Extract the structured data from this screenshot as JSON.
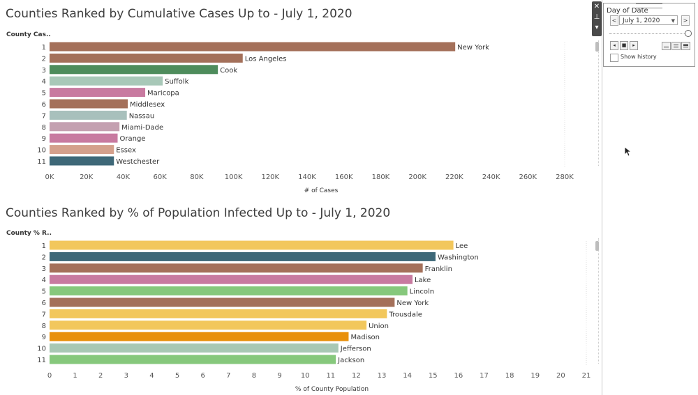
{
  "chart1": {
    "title": "Counties Ranked by Cumulative Cases Up to - July 1, 2020",
    "row_header": "County Cas..",
    "axis_label": "# of Cases"
  },
  "chart2": {
    "title": "Counties Ranked by % of Population Infected Up to - July 1, 2020",
    "row_header": "County % R..",
    "axis_label": "% of County Population"
  },
  "chart_data": [
    {
      "type": "bar",
      "orientation": "horizontal",
      "title": "Counties Ranked by Cumulative Cases Up to - July 1, 2020",
      "xlabel": "# of Cases",
      "ylabel": "County Cas..",
      "xlim": [
        0,
        280000
      ],
      "x_ticks": [
        "0K",
        "20K",
        "40K",
        "60K",
        "80K",
        "100K",
        "120K",
        "140K",
        "160K",
        "180K",
        "200K",
        "220K",
        "240K",
        "260K",
        "280K"
      ],
      "ranks": [
        "1",
        "2",
        "3",
        "4",
        "5",
        "6",
        "7",
        "8",
        "9",
        "10",
        "11"
      ],
      "categories": [
        "New York",
        "Los Angeles",
        "Cook",
        "Suffolk",
        "Maricopa",
        "Middlesex",
        "Nassau",
        "Miami-Dade",
        "Orange",
        "Essex",
        "Westchester"
      ],
      "values": [
        220500,
        105000,
        91500,
        61500,
        52000,
        42500,
        42000,
        38000,
        37000,
        35000,
        35000
      ],
      "colors": [
        "#a4705a",
        "#a4705a",
        "#4e8c5c",
        "#a8c8b8",
        "#c87aa0",
        "#a4705a",
        "#a8c0bc",
        "#c4a0b0",
        "#c87aa0",
        "#d4a08c",
        "#3e6878"
      ],
      "grid": false,
      "legend": "none"
    },
    {
      "type": "bar",
      "orientation": "horizontal",
      "title": "Counties Ranked by % of Population Infected Up to - July 1, 2020",
      "xlabel": "% of County Population",
      "ylabel": "County % R..",
      "xlim": [
        0,
        21
      ],
      "x_ticks": [
        "0",
        "1",
        "2",
        "3",
        "4",
        "5",
        "6",
        "7",
        "8",
        "9",
        "10",
        "11",
        "12",
        "13",
        "14",
        "15",
        "16",
        "17",
        "18",
        "19",
        "20",
        "21"
      ],
      "ranks": [
        "1",
        "2",
        "3",
        "4",
        "5",
        "6",
        "7",
        "8",
        "9",
        "10",
        "11"
      ],
      "categories": [
        "Lee",
        "Washington",
        "Franklin",
        "Lake",
        "Lincoln",
        "New York",
        "Trousdale",
        "Union",
        "Madison",
        "Jefferson",
        "Jackson"
      ],
      "values": [
        15.8,
        15.1,
        14.6,
        14.2,
        14.0,
        13.5,
        13.2,
        12.4,
        11.7,
        11.3,
        11.2
      ],
      "colors": [
        "#f2c75c",
        "#3e6878",
        "#a4705a",
        "#c87aa0",
        "#86c87c",
        "#a4705a",
        "#f2c75c",
        "#f2c75c",
        "#e8900c",
        "#a8c8b4",
        "#86c87c"
      ],
      "grid": false,
      "legend": "none"
    }
  ],
  "filter": {
    "title": "Day of Date",
    "selected_date": "July 1, 2020",
    "prev_label": "<",
    "next_label": ">",
    "show_history_label": "Show history"
  },
  "toolbar": {
    "close_glyph": "✕",
    "pin_glyph": "⊥",
    "menu_glyph": "▾"
  },
  "playback": {
    "back_glyph": "◂",
    "stop_glyph": "■",
    "forward_glyph": "▸"
  }
}
